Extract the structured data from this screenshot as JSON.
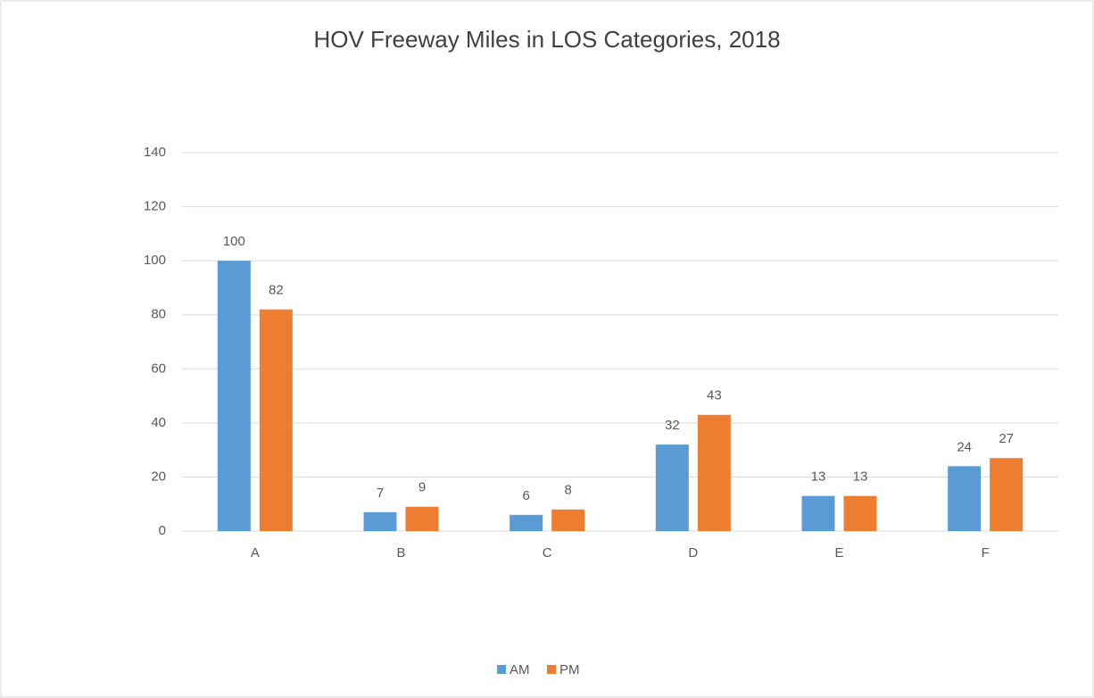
{
  "chart_data": {
    "type": "bar",
    "title": "HOV Freeway Miles in LOS Categories, 2018",
    "categories": [
      "A",
      "B",
      "C",
      "D",
      "E",
      "F"
    ],
    "series": [
      {
        "name": "AM",
        "color": "#5b9bd5",
        "values": [
          100,
          7,
          6,
          32,
          13,
          24
        ]
      },
      {
        "name": "PM",
        "color": "#ed7d31",
        "values": [
          82,
          9,
          8,
          43,
          13,
          27
        ]
      }
    ],
    "ylim": [
      0,
      140
    ],
    "yticks": [
      0,
      20,
      40,
      60,
      80,
      100,
      120,
      140
    ],
    "grid": true,
    "legend": "bottom"
  }
}
